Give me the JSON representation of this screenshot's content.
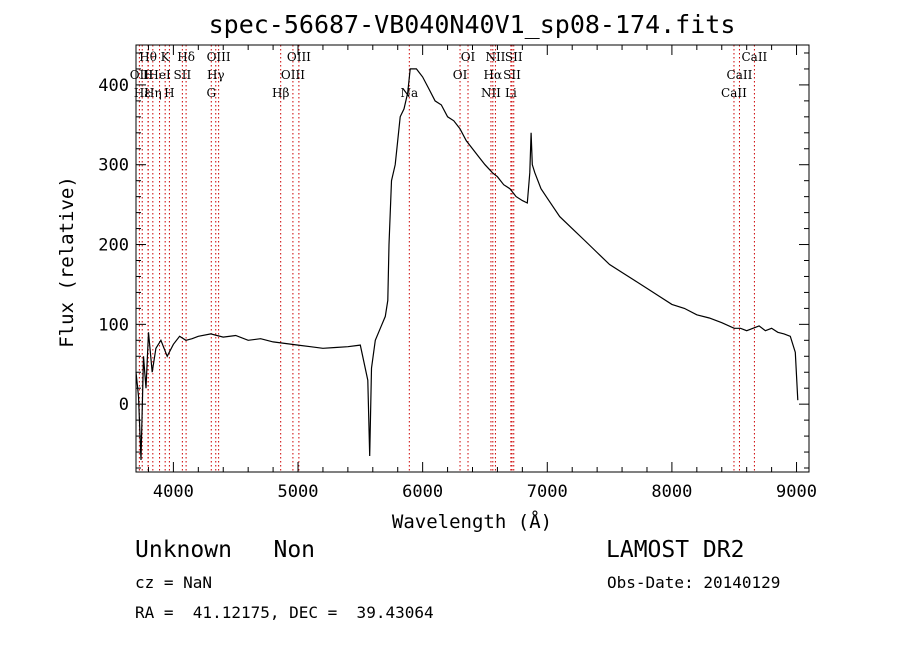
{
  "chart_data": {
    "type": "line",
    "title": "spec-56687-VB040N40V1_sp08-174.fits",
    "xlabel": "Wavelength (Å)",
    "ylabel": "Flux (relative)",
    "xlim": [
      3700,
      9100
    ],
    "ylim": [
      -85,
      450
    ],
    "xticks": [
      4000,
      5000,
      6000,
      7000,
      8000,
      9000
    ],
    "yticks": [
      0,
      100,
      200,
      300,
      400
    ],
    "series": [
      {
        "x": [
          3700,
          3720,
          3740,
          3760,
          3780,
          3800,
          3830,
          3860,
          3900,
          3950,
          4000,
          4050,
          4100,
          4150,
          4200,
          4300,
          4400,
          4500,
          4600,
          4700,
          4800,
          4900,
          5000,
          5100,
          5200,
          5300,
          5400,
          5500,
          5560,
          5575,
          5590,
          5620,
          5660,
          5700,
          5720,
          5730,
          5750,
          5780,
          5800,
          5820,
          5850,
          5880,
          5900,
          5950,
          6000,
          6050,
          6100,
          6150,
          6200,
          6250,
          6300,
          6350,
          6400,
          6450,
          6500,
          6560,
          6600,
          6650,
          6700,
          6750,
          6800,
          6840,
          6860,
          6870,
          6880,
          6900,
          6950,
          7000,
          7100,
          7200,
          7300,
          7400,
          7500,
          7600,
          7700,
          7800,
          7900,
          8000,
          8100,
          8200,
          8300,
          8400,
          8500,
          8550,
          8600,
          8650,
          8700,
          8750,
          8800,
          8850,
          8900,
          8950,
          8990,
          9010
        ],
        "y": [
          40,
          10,
          -70,
          60,
          20,
          90,
          40,
          70,
          80,
          60,
          75,
          85,
          80,
          82,
          85,
          88,
          84,
          86,
          80,
          82,
          78,
          76,
          74,
          72,
          70,
          71,
          72,
          74,
          30,
          -65,
          45,
          80,
          95,
          110,
          130,
          200,
          280,
          300,
          330,
          360,
          370,
          390,
          420,
          420,
          410,
          395,
          380,
          375,
          360,
          355,
          345,
          330,
          320,
          310,
          300,
          290,
          285,
          275,
          270,
          260,
          255,
          252,
          290,
          340,
          300,
          290,
          270,
          258,
          235,
          220,
          205,
          190,
          175,
          165,
          155,
          145,
          135,
          125,
          120,
          112,
          108,
          102,
          95,
          95,
          92,
          95,
          98,
          92,
          95,
          90,
          88,
          85,
          65,
          5
        ]
      }
    ]
  },
  "line_labels": [
    {
      "text": "Hθ",
      "x": 3797,
      "row": 0
    },
    {
      "text": "K",
      "x": 3934,
      "row": 0
    },
    {
      "text": "Hδ",
      "x": 4102,
      "row": 0
    },
    {
      "text": "OIII",
      "x": 4363,
      "row": 0
    },
    {
      "text": "OIII",
      "x": 5007,
      "row": 0
    },
    {
      "text": "OI",
      "x": 6364,
      "row": 0
    },
    {
      "text": "NII",
      "x": 6584,
      "row": 0
    },
    {
      "text": "SII",
      "x": 6731,
      "row": 0
    },
    {
      "text": "CaII",
      "x": 8662,
      "row": 0
    },
    {
      "text": "OII",
      "x": 3727,
      "row": 1
    },
    {
      "text": "H",
      "x": 3798,
      "row": 1
    },
    {
      "text": "HeI",
      "x": 3889,
      "row": 1
    },
    {
      "text": "SII",
      "x": 4072,
      "row": 1
    },
    {
      "text": "Hγ",
      "x": 4340,
      "row": 1
    },
    {
      "text": "OIII",
      "x": 4959,
      "row": 1
    },
    {
      "text": "OI",
      "x": 6300,
      "row": 1
    },
    {
      "text": "Hα",
      "x": 6563,
      "row": 1
    },
    {
      "text": "SII",
      "x": 6717,
      "row": 1
    },
    {
      "text": "CaII",
      "x": 8542,
      "row": 1
    },
    {
      "text": "Hε",
      "x": 3750,
      "row": 2
    },
    {
      "text": "Hη",
      "x": 3835,
      "row": 2
    },
    {
      "text": "H",
      "x": 3968,
      "row": 2
    },
    {
      "text": "G",
      "x": 4304,
      "row": 2
    },
    {
      "text": "Hβ",
      "x": 4861,
      "row": 2
    },
    {
      "text": "Na",
      "x": 5893,
      "row": 2
    },
    {
      "text": "NII",
      "x": 6548,
      "row": 2
    },
    {
      "text": "Li",
      "x": 6708,
      "row": 2
    },
    {
      "text": "CaII",
      "x": 8498,
      "row": 2
    }
  ],
  "info": {
    "class": "Unknown   Non",
    "survey": "LAMOST DR2",
    "cz": "cz = NaN",
    "obsdate": "Obs-Date: 20140129",
    "radec": "RA =  41.12175, DEC =  39.43064"
  },
  "colors": {
    "spectrum": "#000000",
    "marker": "#cc0000"
  }
}
